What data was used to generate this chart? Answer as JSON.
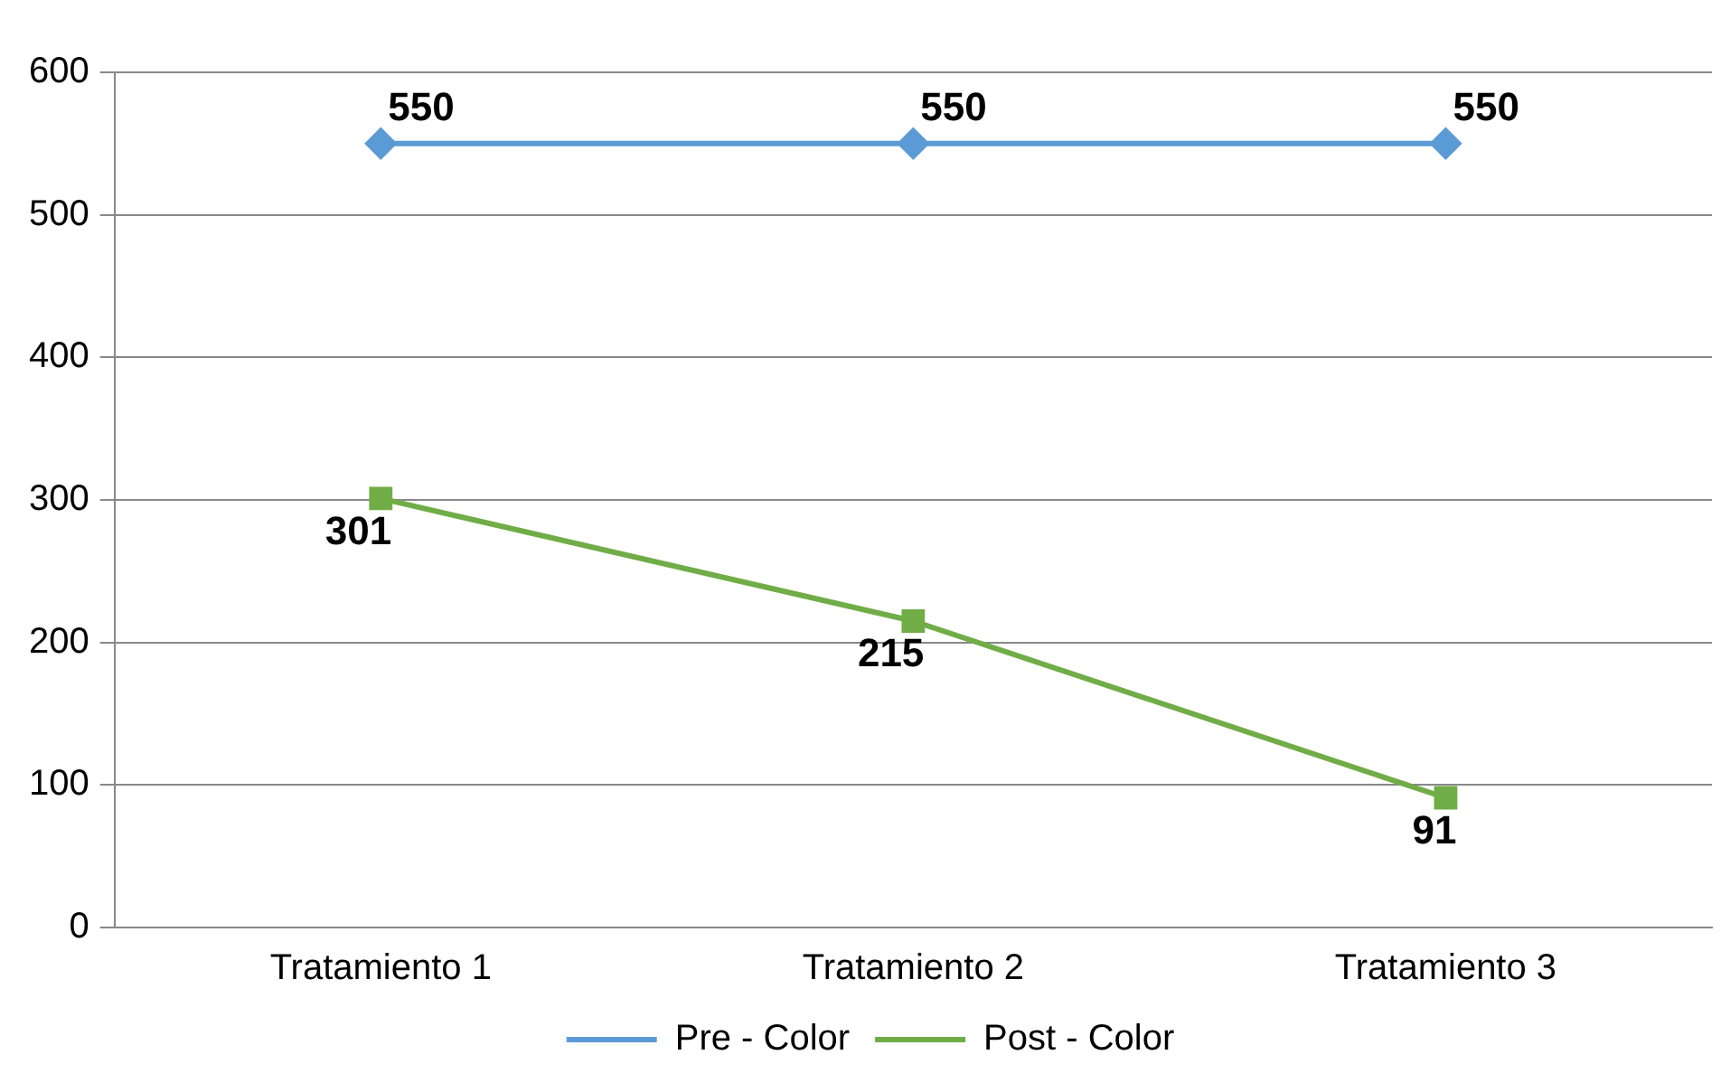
{
  "chart_data": {
    "type": "line",
    "categories": [
      "Tratamiento 1",
      "Tratamiento 2",
      "Tratamiento 3"
    ],
    "series": [
      {
        "name": "Pre - Color",
        "color": "#5b9bd5",
        "values": [
          550,
          550,
          550
        ],
        "marker": "diamond"
      },
      {
        "name": "Post - Color",
        "color": "#70ad47",
        "values": [
          301,
          215,
          91
        ],
        "marker": "square"
      }
    ],
    "ylim": [
      0,
      600
    ],
    "yticks": [
      0,
      100,
      200,
      300,
      400,
      500,
      600
    ],
    "grid": "y",
    "legend": "bottom",
    "data_labels": true,
    "line_style": "solid"
  }
}
